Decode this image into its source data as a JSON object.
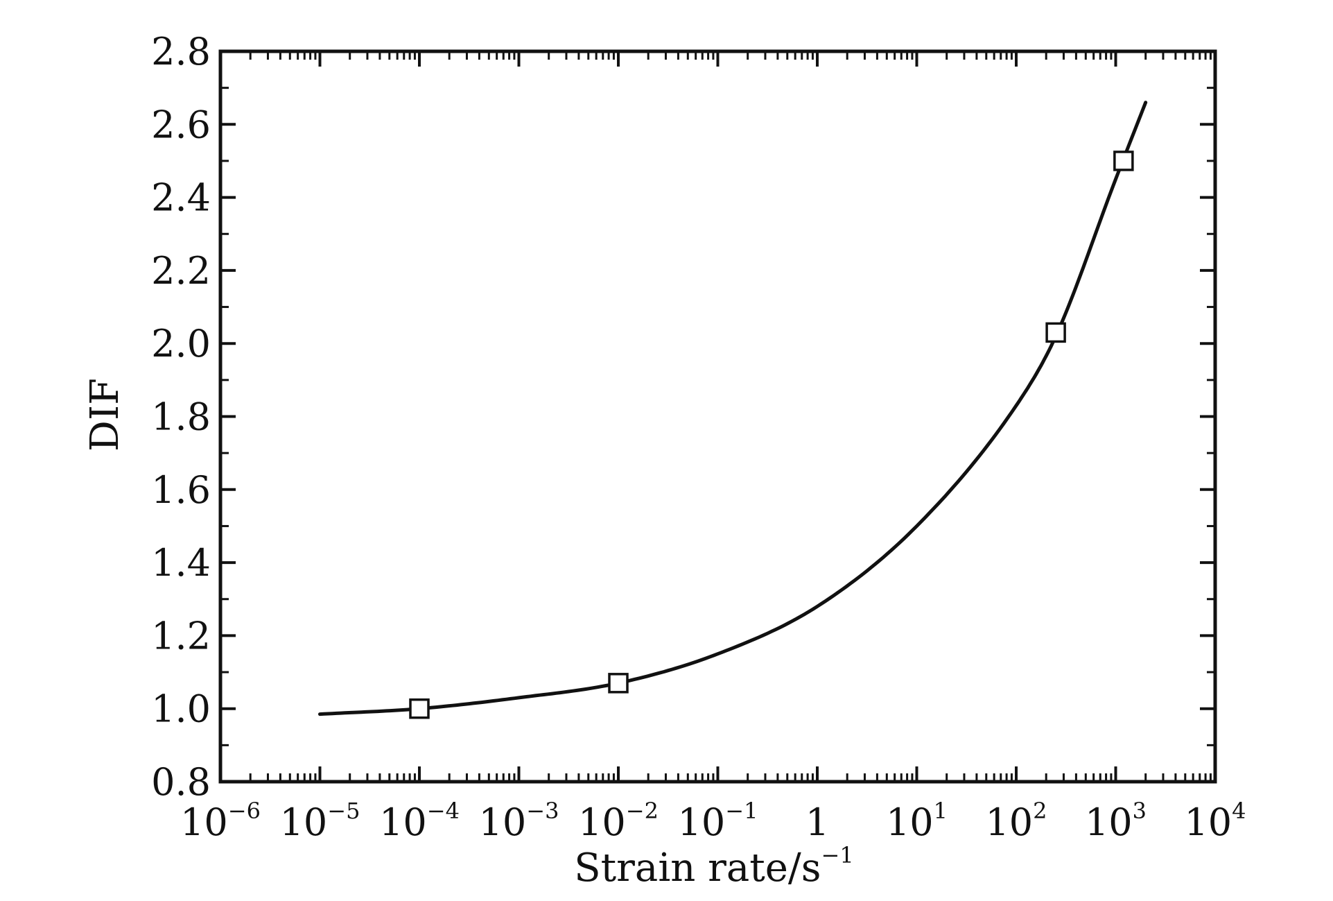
{
  "chart_data": {
    "type": "scatter",
    "xlabel": "Strain rate/s",
    "xlabel_sup": "−1",
    "ylabel": "DIF",
    "xscale": "log",
    "xlim": [
      1e-06,
      10000
    ],
    "ylim": [
      0.8,
      2.8
    ],
    "grid": false,
    "yticks": [
      "0.8",
      "1.0",
      "1.2",
      "1.4",
      "1.6",
      "1.8",
      "2.0",
      "2.2",
      "2.4",
      "2.6",
      "2.8"
    ],
    "xticks": [
      {
        "value": 1e-06,
        "base": "10",
        "exp": "−6"
      },
      {
        "value": 1e-05,
        "base": "10",
        "exp": "−5"
      },
      {
        "value": 0.0001,
        "base": "10",
        "exp": "−4"
      },
      {
        "value": 0.001,
        "base": "10",
        "exp": "−3"
      },
      {
        "value": 0.01,
        "base": "10",
        "exp": "−2"
      },
      {
        "value": 0.1,
        "base": "10",
        "exp": "−1"
      },
      {
        "value": 1,
        "base": "1",
        "exp": ""
      },
      {
        "value": 10,
        "base": "10",
        "exp": "1"
      },
      {
        "value": 100,
        "base": "10",
        "exp": "2"
      },
      {
        "value": 1000,
        "base": "10",
        "exp": "3"
      },
      {
        "value": 10000,
        "base": "10",
        "exp": "4"
      }
    ],
    "series": [
      {
        "marker": "open-square",
        "points": [
          {
            "x": 0.0001,
            "y": 1.0
          },
          {
            "x": 0.01,
            "y": 1.07
          },
          {
            "x": 250,
            "y": 2.03
          },
          {
            "x": 1200,
            "y": 2.5
          }
        ]
      },
      {
        "marker": "line",
        "points": [
          {
            "x": 1e-05,
            "y": 0.985
          },
          {
            "x": 0.0001,
            "y": 1.0
          },
          {
            "x": 0.001,
            "y": 1.03
          },
          {
            "x": 0.01,
            "y": 1.07
          },
          {
            "x": 0.1,
            "y": 1.15
          },
          {
            "x": 1,
            "y": 1.28
          },
          {
            "x": 10,
            "y": 1.5
          },
          {
            "x": 100,
            "y": 1.83
          },
          {
            "x": 250,
            "y": 2.02
          },
          {
            "x": 1000,
            "y": 2.45
          },
          {
            "x": 2000,
            "y": 2.66
          }
        ]
      }
    ]
  }
}
